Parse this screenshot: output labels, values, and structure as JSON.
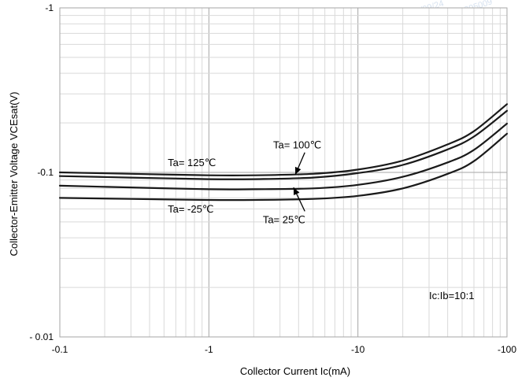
{
  "chart_data": {
    "type": "line",
    "xlabel": "Collector Current   Ic(mA)",
    "ylabel": "Collector-Emitter Voltage   VCEsat(V)",
    "x_scale": "log",
    "y_scale": "log",
    "x_ticks": [
      {
        "value": 0.1,
        "label": "-0.1"
      },
      {
        "value": 1,
        "label": "-1"
      },
      {
        "value": 10,
        "label": "-10"
      },
      {
        "value": 100,
        "label": "-100"
      }
    ],
    "y_ticks": [
      {
        "value": 0.01,
        "label": "- 0.01"
      },
      {
        "value": 0.1,
        "label": "-0.1"
      },
      {
        "value": 1,
        "label": "-1"
      }
    ],
    "xlim": [
      0.1,
      100
    ],
    "ylim": [
      0.01,
      1
    ],
    "grid": true,
    "series": [
      {
        "name": "Ta= 125℃",
        "x": [
          0.1,
          0.3,
          1,
          2,
          5,
          10,
          20,
          40,
          60,
          100
        ],
        "y": [
          0.1,
          0.098,
          0.096,
          0.096,
          0.098,
          0.104,
          0.118,
          0.148,
          0.178,
          0.26
        ]
      },
      {
        "name": "Ta= 100℃",
        "x": [
          0.1,
          0.3,
          1,
          2,
          5,
          10,
          20,
          40,
          60,
          100
        ],
        "y": [
          0.095,
          0.093,
          0.091,
          0.091,
          0.093,
          0.099,
          0.111,
          0.138,
          0.165,
          0.237
        ]
      },
      {
        "name": "Ta= 25℃",
        "x": [
          0.1,
          0.3,
          1,
          2,
          5,
          10,
          20,
          40,
          60,
          100
        ],
        "y": [
          0.083,
          0.081,
          0.079,
          0.079,
          0.08,
          0.084,
          0.094,
          0.115,
          0.137,
          0.198
        ]
      },
      {
        "name": "Ta= -25℃",
        "x": [
          0.1,
          0.3,
          1,
          2,
          5,
          10,
          20,
          40,
          60,
          100
        ],
        "y": [
          0.07,
          0.069,
          0.068,
          0.068,
          0.069,
          0.072,
          0.08,
          0.098,
          0.117,
          0.172
        ]
      }
    ],
    "annotations": [
      {
        "text": "Ta= 125℃"
      },
      {
        "text": "Ta= 100℃"
      },
      {
        "text": "Ta= 25℃"
      },
      {
        "text": "Ta= -25℃"
      }
    ],
    "condition": "Ic:Ib=10:1"
  },
  "watermarks": [
    "2020/09/24",
    "NBO201 Y1201905009",
    "2020/09/24",
    "NBO201 Y1201905009",
    "2020/09/24 10:34",
    "NBO201 Y1201905009",
    "2020/09/24 10:34",
    "NBO201 Y1201905009"
  ]
}
